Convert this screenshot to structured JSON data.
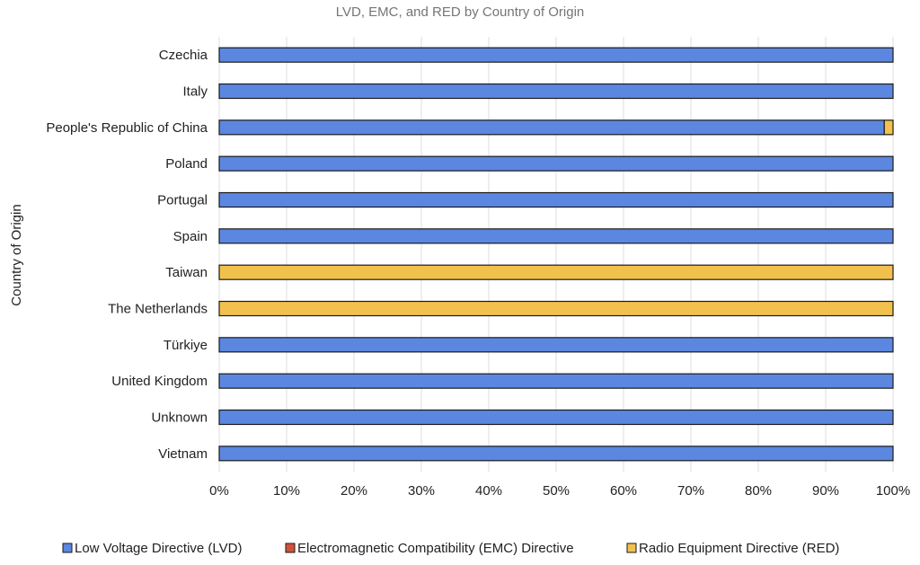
{
  "chart_data": {
    "type": "bar",
    "orientation": "horizontal",
    "stacked": "percent",
    "title": "LVD, EMC, and RED by Country of Origin",
    "xlabel": "",
    "ylabel": "Country of Origin",
    "xlim": [
      0,
      100
    ],
    "xtick_values": [
      0,
      10,
      20,
      30,
      40,
      50,
      60,
      70,
      80,
      90,
      100
    ],
    "xtick_labels": [
      "0%",
      "10%",
      "20%",
      "30%",
      "40%",
      "50%",
      "60%",
      "70%",
      "80%",
      "90%",
      "100%"
    ],
    "grid": true,
    "legend_position": "bottom",
    "categories": [
      "Czechia",
      "Italy",
      "People's Republic of China",
      "Poland",
      "Portugal",
      "Spain",
      "Taiwan",
      "The Netherlands",
      "Türkiye",
      "United Kingdom",
      "Unknown",
      "Vietnam"
    ],
    "series": [
      {
        "name": "Low Voltage Directive (LVD)",
        "color": "#5b87e0",
        "values": [
          100,
          100,
          98.7,
          100,
          100,
          100,
          0,
          0,
          100,
          100,
          100,
          100
        ]
      },
      {
        "name": "Electromagnetic Compatibility (EMC) Directive",
        "color": "#d2513c",
        "values": [
          0,
          0,
          0,
          0,
          0,
          0,
          0,
          0,
          0,
          0,
          0,
          0
        ]
      },
      {
        "name": "Radio Equipment Directive (RED)",
        "color": "#f2c14d",
        "values": [
          0,
          0,
          1.3,
          0,
          0,
          0,
          100,
          100,
          0,
          0,
          0,
          0
        ]
      }
    ]
  }
}
